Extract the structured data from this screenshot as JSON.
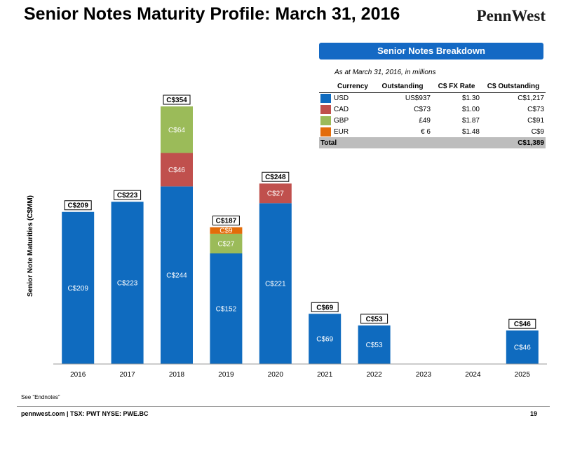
{
  "page": {
    "title": "Senior Notes Maturity Profile: March 31, 2016",
    "logo": "PennWest",
    "footnote": "See “Endnotes”",
    "footer": "pennwest.com | TSX: PWT  NYSE: PWE.BC",
    "page_number": "19"
  },
  "breakdown": {
    "header": "Senior Notes Breakdown",
    "note": "As at March 31, 2016, in millions",
    "columns": [
      "Currency",
      "Outstanding",
      "C$ FX Rate",
      "C$ Outstanding"
    ],
    "rows": [
      {
        "currency": "USD",
        "outstanding": "US$937",
        "fx": "$1.30",
        "cad": "C$1,217",
        "color": "#0f6bbf"
      },
      {
        "currency": "CAD",
        "outstanding": "C$73",
        "fx": "$1.00",
        "cad": "C$73",
        "color": "#c0504d"
      },
      {
        "currency": "GBP",
        "outstanding": "£49",
        "fx": "$1.87",
        "cad": "C$91",
        "color": "#9bbb59"
      },
      {
        "currency": "EUR",
        "outstanding": "€ 6",
        "fx": "$1.48",
        "cad": "C$9",
        "color": "#e36c0a"
      }
    ],
    "total_label": "Total",
    "total_value": "C$1,389"
  },
  "chart_data": {
    "type": "bar",
    "stacked": true,
    "ylabel": "Senior Note Maturities (C$MM)",
    "categories": [
      "2016",
      "2017",
      "2018",
      "2019",
      "2020",
      "2021",
      "2022",
      "2023",
      "2024",
      "2025"
    ],
    "series": [
      {
        "name": "USD",
        "color": "#0f6bbf",
        "values": [
          209,
          223,
          244,
          152,
          221,
          69,
          53,
          0,
          0,
          46
        ],
        "labels": [
          "C$209",
          "C$223",
          "C$244",
          "C$152",
          "C$221",
          "C$69",
          "C$53",
          "",
          "",
          "C$46"
        ]
      },
      {
        "name": "CAD",
        "color": "#c0504d",
        "values": [
          0,
          0,
          46,
          0,
          27,
          0,
          0,
          0,
          0,
          0
        ],
        "labels": [
          "",
          "",
          "C$46",
          "",
          "C$27",
          "",
          "",
          "",
          "",
          ""
        ]
      },
      {
        "name": "GBP",
        "color": "#9bbb59",
        "values": [
          0,
          0,
          64,
          27,
          0,
          0,
          0,
          0,
          0,
          0
        ],
        "labels": [
          "",
          "",
          "C$64",
          "C$27",
          "",
          "",
          "",
          "",
          "",
          ""
        ]
      },
      {
        "name": "EUR",
        "color": "#e36c0a",
        "values": [
          0,
          0,
          0,
          9,
          0,
          0,
          0,
          0,
          0,
          0
        ],
        "labels": [
          "",
          "",
          "",
          "C$9",
          "",
          "",
          "",
          "",
          "",
          ""
        ]
      }
    ],
    "totals": [
      "C$209",
      "C$223",
      "C$354",
      "C$187",
      "C$248",
      "C$69",
      "C$53",
      "",
      "",
      "C$46"
    ],
    "ylim": [
      0,
      400
    ],
    "grid": false
  }
}
